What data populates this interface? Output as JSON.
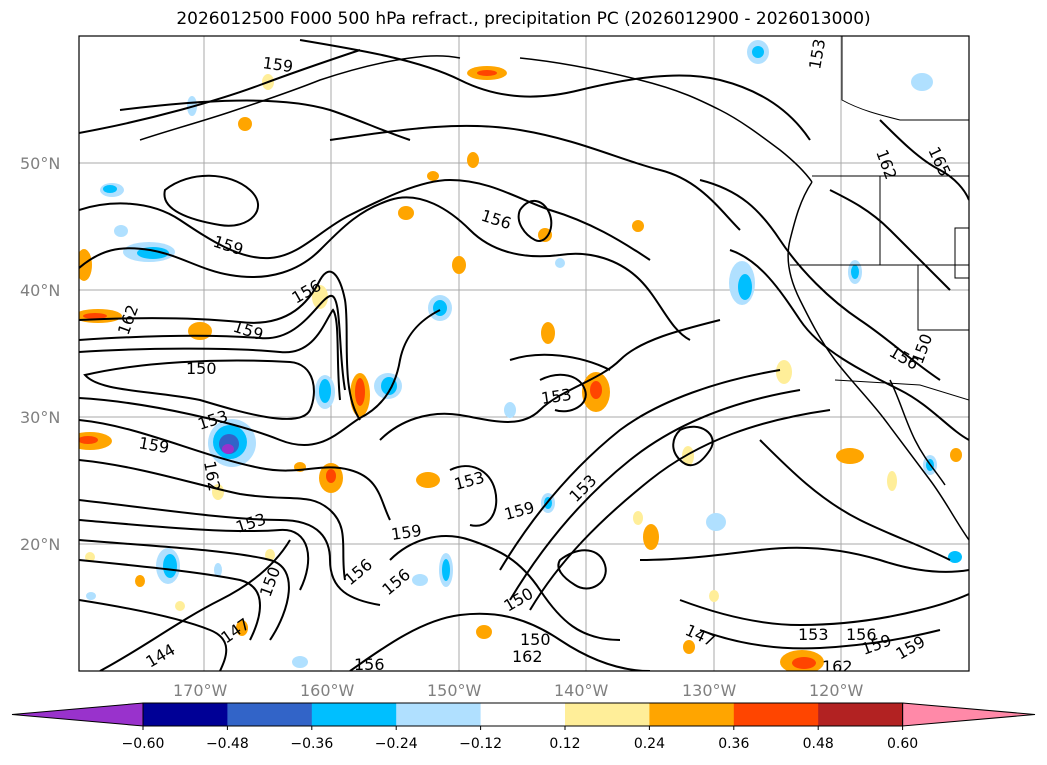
{
  "title": "2026012500 F000 500 hPa refract., precipitation PC (2026012900 - 2026013000)",
  "lat_labels": [
    "50°N",
    "40°N",
    "30°N",
    "20°N"
  ],
  "lon_labels": [
    "170°W",
    "160°W",
    "150°W",
    "140°W",
    "130°W",
    "120°W"
  ],
  "contour_labels": [
    "159",
    "162",
    "165",
    "156",
    "159",
    "156",
    "159",
    "162",
    "150",
    "153",
    "159",
    "162",
    "153",
    "150",
    "159",
    "156",
    "153",
    "159",
    "153",
    "150",
    "147",
    "144",
    "147",
    "153",
    "156",
    "159",
    "153",
    "156",
    "150",
    "153",
    "162",
    "156",
    "159",
    "156",
    "150",
    "162",
    "159",
    "147",
    "150",
    "153",
    "156",
    "162",
    "150"
  ],
  "colorbar": {
    "ticks": [
      "−0.60",
      "−0.48",
      "−0.36",
      "−0.24",
      "−0.12",
      "0.12",
      "0.24",
      "0.36",
      "0.48",
      "0.60"
    ],
    "colors": {
      "under": "#9932cc",
      "bins": [
        "#000096",
        "#3264c8",
        "#00bfff",
        "#b0e0ff",
        "#ffffff",
        "#ffee99",
        "#ffa500",
        "#ff4500",
        "#b22222"
      ],
      "over": "#ff89a8"
    }
  }
}
